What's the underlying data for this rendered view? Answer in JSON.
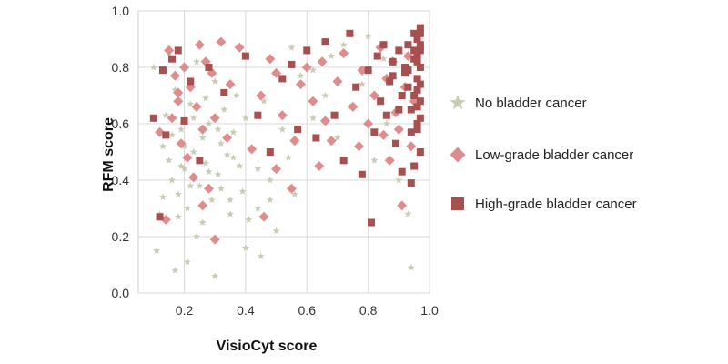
{
  "chart_data": {
    "type": "scatter",
    "title": "",
    "xlabel": "VisioCyt score",
    "ylabel": "RFM score",
    "xlim": [
      0.05,
      1.0
    ],
    "ylim": [
      0.0,
      1.0
    ],
    "x_ticks": [
      "0.2",
      "0.4",
      "0.6",
      "0.8",
      "1.0"
    ],
    "y_ticks": [
      "0.0",
      "0.2",
      "0.4",
      "0.6",
      "0.8",
      "1.0"
    ],
    "grid": true,
    "legend_position": "right",
    "series": [
      {
        "name": "No bladder cancer",
        "marker": "star",
        "color": "#c9cbb3",
        "points": [
          [
            0.1,
            0.8
          ],
          [
            0.12,
            0.28
          ],
          [
            0.11,
            0.15
          ],
          [
            0.13,
            0.52
          ],
          [
            0.14,
            0.63
          ],
          [
            0.15,
            0.47
          ],
          [
            0.16,
            0.4
          ],
          [
            0.17,
            0.72
          ],
          [
            0.18,
            0.35
          ],
          [
            0.19,
            0.58
          ],
          [
            0.2,
            0.44
          ],
          [
            0.21,
            0.3
          ],
          [
            0.22,
            0.67
          ],
          [
            0.23,
            0.5
          ],
          [
            0.24,
            0.82
          ],
          [
            0.25,
            0.38
          ],
          [
            0.26,
            0.55
          ],
          [
            0.27,
            0.46
          ],
          [
            0.28,
            0.6
          ],
          [
            0.29,
            0.33
          ],
          [
            0.3,
            0.75
          ],
          [
            0.31,
            0.42
          ],
          [
            0.32,
            0.53
          ],
          [
            0.33,
            0.65
          ],
          [
            0.34,
            0.49
          ],
          [
            0.35,
            0.28
          ],
          [
            0.36,
            0.57
          ],
          [
            0.37,
            0.7
          ],
          [
            0.38,
            0.45
          ],
          [
            0.39,
            0.36
          ],
          [
            0.4,
            0.62
          ],
          [
            0.42,
            0.51
          ],
          [
            0.44,
            0.3
          ],
          [
            0.46,
            0.68
          ],
          [
            0.48,
            0.4
          ],
          [
            0.5,
            0.22
          ],
          [
            0.52,
            0.58
          ],
          [
            0.54,
            0.48
          ],
          [
            0.56,
            0.35
          ],
          [
            0.58,
            0.77
          ],
          [
            0.62,
            0.62
          ],
          [
            0.66,
            0.7
          ],
          [
            0.7,
            0.55
          ],
          [
            0.74,
            0.66
          ],
          [
            0.78,
            0.74
          ],
          [
            0.82,
            0.47
          ],
          [
            0.86,
            0.6
          ],
          [
            0.9,
            0.4
          ],
          [
            0.93,
            0.28
          ],
          [
            0.94,
            0.09
          ],
          [
            0.15,
            0.85
          ],
          [
            0.18,
            0.27
          ],
          [
            0.2,
            0.52
          ],
          [
            0.22,
            0.38
          ],
          [
            0.26,
            0.25
          ],
          [
            0.28,
            0.43
          ],
          [
            0.32,
            0.37
          ],
          [
            0.36,
            0.48
          ],
          [
            0.41,
            0.26
          ],
          [
            0.44,
            0.44
          ],
          [
            0.48,
            0.33
          ],
          [
            0.13,
            0.34
          ],
          [
            0.16,
            0.56
          ],
          [
            0.19,
            0.45
          ],
          [
            0.23,
            0.62
          ],
          [
            0.27,
            0.69
          ],
          [
            0.31,
            0.58
          ],
          [
            0.35,
            0.33
          ],
          [
            0.4,
            0.16
          ],
          [
            0.17,
            0.08
          ],
          [
            0.21,
            0.11
          ],
          [
            0.24,
            0.2
          ],
          [
            0.3,
            0.06
          ],
          [
            0.45,
            0.13
          ],
          [
            0.55,
            0.87
          ],
          [
            0.62,
            0.79
          ],
          [
            0.68,
            0.84
          ],
          [
            0.72,
            0.88
          ],
          [
            0.8,
            0.91
          ],
          [
            0.85,
            0.83
          ]
        ]
      },
      {
        "name": "Low-grade bladder cancer",
        "marker": "diamond",
        "color": "#df8c8c",
        "points": [
          [
            0.12,
            0.57
          ],
          [
            0.14,
            0.26
          ],
          [
            0.15,
            0.86
          ],
          [
            0.16,
            0.62
          ],
          [
            0.17,
            0.77
          ],
          [
            0.18,
            0.68
          ],
          [
            0.19,
            0.53
          ],
          [
            0.2,
            0.8
          ],
          [
            0.21,
            0.48
          ],
          [
            0.22,
            0.73
          ],
          [
            0.23,
            0.41
          ],
          [
            0.24,
            0.66
          ],
          [
            0.25,
            0.88
          ],
          [
            0.26,
            0.58
          ],
          [
            0.27,
            0.82
          ],
          [
            0.28,
            0.37
          ],
          [
            0.29,
            0.78
          ],
          [
            0.3,
            0.62
          ],
          [
            0.32,
            0.89
          ],
          [
            0.35,
            0.74
          ],
          [
            0.38,
            0.87
          ],
          [
            0.42,
            0.51
          ],
          [
            0.45,
            0.7
          ],
          [
            0.48,
            0.83
          ],
          [
            0.5,
            0.44
          ],
          [
            0.52,
            0.63
          ],
          [
            0.55,
            0.37
          ],
          [
            0.58,
            0.74
          ],
          [
            0.6,
            0.8
          ],
          [
            0.62,
            0.68
          ],
          [
            0.65,
            0.82
          ],
          [
            0.68,
            0.54
          ],
          [
            0.7,
            0.75
          ],
          [
            0.72,
            0.85
          ],
          [
            0.75,
            0.66
          ],
          [
            0.78,
            0.79
          ],
          [
            0.8,
            0.6
          ],
          [
            0.82,
            0.7
          ],
          [
            0.84,
            0.87
          ],
          [
            0.85,
            0.56
          ],
          [
            0.86,
            0.76
          ],
          [
            0.87,
            0.47
          ],
          [
            0.88,
            0.82
          ],
          [
            0.89,
            0.64
          ],
          [
            0.9,
            0.58
          ],
          [
            0.91,
            0.31
          ],
          [
            0.92,
            0.73
          ],
          [
            0.93,
            0.84
          ],
          [
            0.94,
            0.52
          ],
          [
            0.95,
            0.68
          ],
          [
            0.3,
            0.19
          ],
          [
            0.46,
            0.27
          ],
          [
            0.64,
            0.45
          ],
          [
            0.56,
            0.54
          ],
          [
            0.26,
            0.31
          ],
          [
            0.18,
            0.71
          ],
          [
            0.34,
            0.55
          ],
          [
            0.5,
            0.78
          ],
          [
            0.66,
            0.61
          ],
          [
            0.77,
            0.52
          ]
        ]
      },
      {
        "name": "High-grade bladder cancer",
        "marker": "square",
        "color": "#a84f4f",
        "points": [
          [
            0.1,
            0.62
          ],
          [
            0.12,
            0.27
          ],
          [
            0.13,
            0.79
          ],
          [
            0.14,
            0.56
          ],
          [
            0.16,
            0.83
          ],
          [
            0.18,
            0.86
          ],
          [
            0.2,
            0.61
          ],
          [
            0.22,
            0.75
          ],
          [
            0.25,
            0.47
          ],
          [
            0.28,
            0.8
          ],
          [
            0.33,
            0.71
          ],
          [
            0.4,
            0.84
          ],
          [
            0.44,
            0.63
          ],
          [
            0.48,
            0.5
          ],
          [
            0.52,
            0.76
          ],
          [
            0.55,
            0.81
          ],
          [
            0.57,
            0.58
          ],
          [
            0.6,
            0.86
          ],
          [
            0.63,
            0.55
          ],
          [
            0.66,
            0.89
          ],
          [
            0.69,
            0.63
          ],
          [
            0.72,
            0.47
          ],
          [
            0.74,
            0.92
          ],
          [
            0.76,
            0.73
          ],
          [
            0.78,
            0.42
          ],
          [
            0.8,
            0.79
          ],
          [
            0.81,
            0.25
          ],
          [
            0.82,
            0.57
          ],
          [
            0.83,
            0.84
          ],
          [
            0.84,
            0.68
          ],
          [
            0.85,
            0.88
          ],
          [
            0.86,
            0.63
          ],
          [
            0.87,
            0.75
          ],
          [
            0.88,
            0.82
          ],
          [
            0.89,
            0.53
          ],
          [
            0.9,
            0.86
          ],
          [
            0.91,
            0.7
          ],
          [
            0.92,
            0.78
          ],
          [
            0.93,
            0.88
          ],
          [
            0.94,
            0.65
          ],
          [
            0.95,
            0.83
          ],
          [
            0.96,
            0.9
          ],
          [
            0.96,
            0.58
          ],
          [
            0.97,
            0.8
          ],
          [
            0.97,
            0.94
          ],
          [
            0.96,
            0.72
          ],
          [
            0.97,
            0.68
          ],
          [
            0.95,
            0.45
          ],
          [
            0.94,
            0.39
          ],
          [
            0.97,
            0.86
          ],
          [
            0.96,
            0.76
          ],
          [
            0.97,
            0.62
          ],
          [
            0.95,
            0.92
          ],
          [
            0.96,
            0.84
          ],
          [
            0.93,
            0.73
          ],
          [
            0.97,
            0.5
          ],
          [
            0.92,
            0.8
          ],
          [
            0.96,
            0.66
          ],
          [
            0.95,
            0.86
          ],
          [
            0.97,
            0.74
          ],
          [
            0.91,
            0.43
          ],
          [
            0.94,
            0.57
          ],
          [
            0.96,
            0.82
          ],
          [
            0.97,
            0.88
          ],
          [
            0.95,
            0.7
          ],
          [
            0.9,
            0.65
          ],
          [
            0.96,
            0.6
          ],
          [
            0.97,
            0.92
          ],
          [
            0.93,
            0.79
          ],
          [
            0.88,
            0.77
          ]
        ]
      }
    ]
  }
}
